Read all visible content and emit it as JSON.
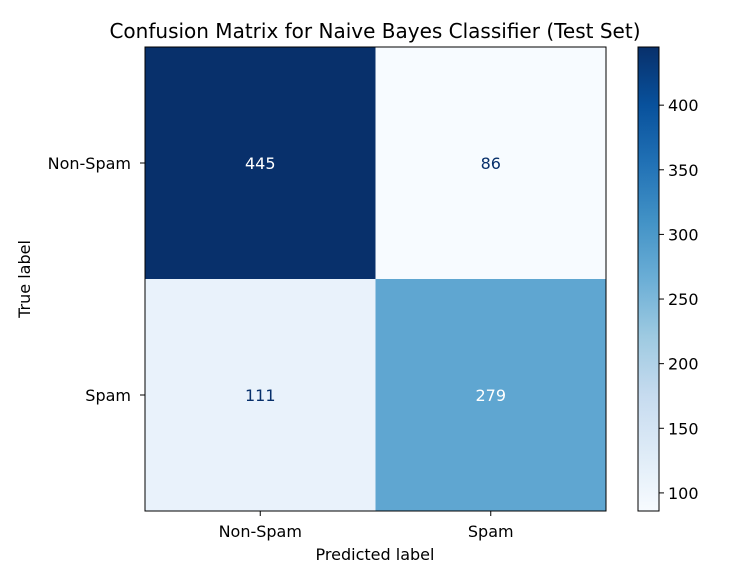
{
  "chart_data": {
    "type": "heatmap",
    "title": "Confusion Matrix for Naive Bayes Classifier (Test Set)",
    "xlabel": "Predicted label",
    "ylabel": "True label",
    "x_categories": [
      "Non-Spam",
      "Spam"
    ],
    "y_categories": [
      "Non-Spam",
      "Spam"
    ],
    "values": [
      [
        445,
        86
      ],
      [
        111,
        279
      ]
    ],
    "colormap": "Blues",
    "colorbar": {
      "min": 86,
      "max": 445,
      "ticks": [
        100,
        150,
        200,
        250,
        300,
        350,
        400
      ]
    }
  }
}
